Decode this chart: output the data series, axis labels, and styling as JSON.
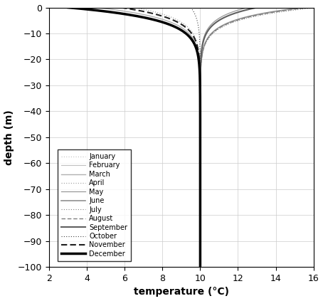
{
  "xlabel": "temperature (°C)",
  "ylabel": "depth (m)",
  "xlim": [
    2,
    16
  ],
  "ylim": [
    -100,
    0
  ],
  "xticks": [
    2,
    4,
    6,
    8,
    10,
    12,
    14,
    16
  ],
  "yticks": [
    0,
    -10,
    -20,
    -30,
    -40,
    -50,
    -60,
    -70,
    -80,
    -90,
    -100
  ],
  "deep_temp": 10.0,
  "surface_temps": [
    3.2,
    3.0,
    4.5,
    6.5,
    12.5,
    15.5,
    16.2,
    15.8,
    13.0,
    9.5,
    5.8,
    3.0
  ],
  "months": [
    "January",
    "February",
    "March",
    "April",
    "May",
    "June",
    "July",
    "August",
    "September",
    "October",
    "November",
    "December"
  ],
  "colors": [
    "#c0c0c0",
    "#c0c0c0",
    "#b0b0b0",
    "#989898",
    "#989898",
    "#909090",
    "#808080",
    "#808080",
    "#606060",
    "#404040",
    "#202020",
    "#000000"
  ],
  "linestyles_name": [
    "finedot",
    "solid",
    "solid",
    "finedot",
    "solid",
    "solid",
    "finedot",
    "dashed",
    "solid",
    "finedot",
    "dashed",
    "solid"
  ],
  "linewidths": [
    0.8,
    0.8,
    1.0,
    0.8,
    0.9,
    1.2,
    0.8,
    1.0,
    1.5,
    0.8,
    1.5,
    2.5
  ],
  "decay_depth": 4.5,
  "background_color": "#ffffff",
  "grid_color": "#cccccc"
}
